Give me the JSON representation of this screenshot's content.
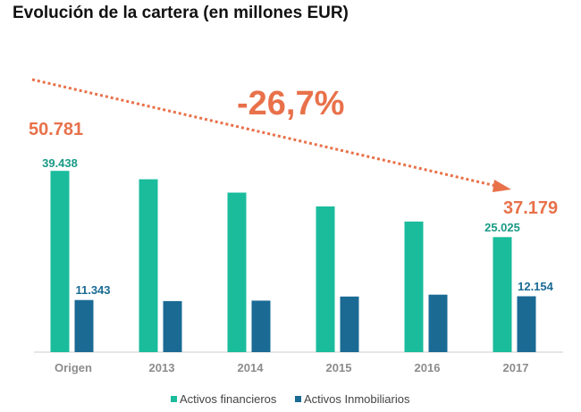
{
  "chart_data": {
    "type": "bar",
    "title": "Evolución de la cartera (en millones EUR)",
    "categories": [
      "Origen",
      "2013",
      "2014",
      "2015",
      "2016",
      "2017"
    ],
    "series": [
      {
        "name": "Activos financieros",
        "values": [
          39438,
          37600,
          34700,
          31700,
          28400,
          25025
        ]
      },
      {
        "name": "Activos Inmobiliarios",
        "values": [
          11343,
          11100,
          11200,
          12100,
          12500,
          12154
        ]
      }
    ],
    "data_labels": {
      "first_financial": "39.438",
      "first_real_estate": "11.343",
      "last_financial": "25.025",
      "last_real_estate": "12.154"
    },
    "totals": {
      "start": "50.781",
      "end": "37.179"
    },
    "change_label": "-26,7%",
    "ylim": [
      0,
      42000
    ],
    "legend_position": "bottom",
    "grid": false,
    "colors": {
      "financial": "#1ABC9C",
      "real_estate": "#1A6A94",
      "financial_label": "#1A9A86",
      "real_estate_label": "#1A6A94",
      "accent": "#E8714A",
      "axis": "#CCCCCC"
    }
  }
}
